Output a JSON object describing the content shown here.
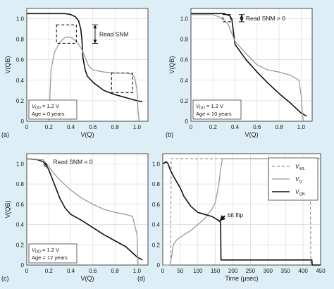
{
  "figure": {
    "background": "#ddeef6",
    "plot_background": "#ffffff",
    "black_curve": "#111111",
    "gray_curve": "#9a9a9a"
  },
  "chart_data": [
    {
      "id": "a",
      "type": "line",
      "panel_label": "(a)",
      "xlabel": "V(Q)",
      "ylabel": "V(QB)",
      "xlim": [
        0,
        1.1
      ],
      "ylim": [
        0,
        1.1
      ],
      "xticks": [
        "0",
        "0.2",
        "0.4",
        "0.6",
        "0.8",
        "1.0"
      ],
      "yticks": [
        "0",
        "0.2",
        "0.4",
        "0.6",
        "0.8",
        "1.0"
      ],
      "grid": true,
      "series": [
        {
          "color": "#111111",
          "x": [
            0.0,
            0.35,
            0.4,
            0.44,
            0.47,
            0.49,
            0.5,
            0.51,
            0.53,
            0.55,
            0.6,
            0.7,
            0.8,
            0.9,
            1.0,
            1.05
          ],
          "y": [
            1.05,
            1.05,
            1.04,
            1.02,
            0.98,
            0.9,
            0.8,
            0.62,
            0.5,
            0.44,
            0.38,
            0.3,
            0.26,
            0.23,
            0.2,
            0.19
          ]
        },
        {
          "color": "#9a9a9a",
          "x": [
            0.2,
            0.22,
            0.25,
            0.3,
            0.35,
            0.4,
            0.45,
            0.5,
            0.54,
            0.56,
            0.6,
            0.7,
            0.8,
            0.9,
            0.95,
            0.98,
            1.0,
            1.01,
            1.02
          ],
          "y": [
            0.0,
            0.5,
            0.67,
            0.77,
            0.82,
            0.82,
            0.78,
            0.7,
            0.6,
            0.54,
            0.5,
            0.48,
            0.47,
            0.47,
            0.46,
            0.43,
            0.3,
            0.1,
            0.0
          ]
        }
      ],
      "snm_boxes": [
        {
          "x": [
            0.27,
            0.45
          ],
          "y": [
            0.76,
            0.94
          ]
        },
        {
          "x": [
            0.77,
            0.96
          ],
          "y": [
            0.28,
            0.47
          ]
        }
      ],
      "annotation": {
        "text": "Read SNM",
        "x": 0.62,
        "y": [
          0.76,
          0.94
        ]
      },
      "legend": {
        "position": "bottom-left",
        "lines": [
          "V DD = 1.2 V",
          "Age = 0 years"
        ]
      }
    },
    {
      "id": "b",
      "type": "line",
      "panel_label": "(b)",
      "xlabel": "V(Q)",
      "ylabel": "V(QB)",
      "xlim": [
        0,
        1.1
      ],
      "ylim": [
        0,
        1.1
      ],
      "xticks": [
        "0",
        "0.2",
        "0.4",
        "0.6",
        "0.8",
        "1.0"
      ],
      "yticks": [
        "0",
        "0.2",
        "0.4",
        "0.6",
        "0.8",
        "1.0"
      ],
      "grid": true,
      "series": [
        {
          "color": "#111111",
          "x": [
            0.0,
            0.3,
            0.35,
            0.37,
            0.4,
            0.5,
            0.6,
            0.7,
            0.8,
            0.9,
            1.0,
            1.05
          ],
          "y": [
            1.05,
            1.05,
            1.03,
            1.0,
            0.75,
            0.6,
            0.48,
            0.37,
            0.27,
            0.18,
            0.08,
            0.05
          ]
        },
        {
          "color": "#9a9a9a",
          "x": [
            0.0,
            0.2,
            0.25,
            0.3,
            0.34,
            0.4,
            0.5,
            0.6,
            0.7,
            0.8,
            0.9,
            0.98,
            1.0,
            1.01,
            1.02
          ],
          "y": [
            1.04,
            1.04,
            1.02,
            0.99,
            0.94,
            0.78,
            0.66,
            0.55,
            0.5,
            0.48,
            0.45,
            0.4,
            0.25,
            0.1,
            0.0
          ]
        }
      ],
      "snm_boxes": [
        {
          "x": [
            0.29,
            0.36
          ],
          "y": [
            0.97,
            1.04
          ]
        }
      ],
      "annotation": {
        "text": "Read SNM > 0",
        "x": 0.46,
        "y": [
          0.97,
          1.04
        ]
      },
      "legend": {
        "position": "bottom-left",
        "lines": [
          "V DD = 1.2 V",
          "Age = 10 years"
        ]
      }
    },
    {
      "id": "c",
      "type": "line",
      "panel_label": "(c)",
      "xlabel": "V(Q)",
      "ylabel": "V(QB)",
      "xlim": [
        0,
        1.1
      ],
      "ylim": [
        0,
        1.1
      ],
      "xticks": [
        "0",
        "0.2",
        "0.4",
        "0.6",
        "0.8",
        "1.0"
      ],
      "yticks": [
        "0",
        "0.2",
        "0.4",
        "0.6",
        "0.8",
        "1.0"
      ],
      "grid": true,
      "series": [
        {
          "color": "#111111",
          "x": [
            0.0,
            0.1,
            0.15,
            0.18,
            0.2,
            0.25,
            0.3,
            0.35,
            0.4,
            0.5,
            0.6,
            0.7,
            0.8,
            0.9,
            1.0,
            1.05
          ],
          "y": [
            1.05,
            1.04,
            1.02,
            0.98,
            0.94,
            0.8,
            0.66,
            0.56,
            0.5,
            0.44,
            0.37,
            0.3,
            0.24,
            0.18,
            0.08,
            0.05
          ]
        },
        {
          "color": "#9a9a9a",
          "x": [
            0.0,
            0.15,
            0.18,
            0.25,
            0.3,
            0.4,
            0.5,
            0.6,
            0.7,
            0.8,
            0.9,
            0.96,
            1.0,
            1.01
          ],
          "y": [
            1.05,
            1.04,
            1.0,
            0.9,
            0.84,
            0.74,
            0.66,
            0.6,
            0.55,
            0.52,
            0.5,
            0.48,
            0.3,
            0.0
          ]
        }
      ],
      "snm_point": {
        "x": 0.17,
        "y": 0.99
      },
      "annotation": {
        "text": "Read SNM = 0",
        "x": 0.24,
        "y": 1.02
      },
      "legend": {
        "position": "bottom-left",
        "lines": [
          "V DD = 1.2 V",
          "Age = 12 years"
        ]
      }
    },
    {
      "id": "d",
      "type": "line",
      "panel_label": "(d)",
      "xlabel": "Time (μsec)",
      "xlim": [
        0,
        450
      ],
      "ylim": [
        0,
        1.1
      ],
      "xticks": [
        "0",
        "50",
        "100",
        "150",
        "200",
        "250",
        "300",
        "350",
        "400",
        "450"
      ],
      "yticks": [
        "0",
        "0.2",
        "0.4",
        "0.6",
        "0.8",
        "1.0"
      ],
      "grid": true,
      "series": [
        {
          "name": "V WL",
          "color": "#9a9a9a",
          "dash": "dashed",
          "x": [
            0,
            22,
            24,
            420,
            422,
            450
          ],
          "y": [
            0,
            0,
            1.05,
            1.05,
            0,
            0
          ]
        },
        {
          "name": "V Q",
          "color": "#9a9a9a",
          "dash": "solid",
          "x": [
            0,
            20,
            25,
            30,
            40,
            60,
            80,
            100,
            120,
            140,
            150,
            160,
            165,
            170,
            450
          ],
          "y": [
            0.0,
            0.0,
            0.08,
            0.2,
            0.25,
            0.3,
            0.34,
            0.4,
            0.46,
            0.55,
            0.62,
            0.8,
            0.95,
            1.05,
            1.05
          ]
        },
        {
          "name": "V QB",
          "color": "#111111",
          "dash": "solid",
          "x": [
            0,
            10,
            15,
            20,
            30,
            40,
            50,
            60,
            80,
            100,
            120,
            140,
            150,
            160,
            165,
            166,
            200,
            300,
            400,
            425,
            426,
            450
          ],
          "y": [
            1.0,
            1.02,
            1.0,
            0.95,
            0.88,
            0.82,
            0.76,
            0.68,
            0.58,
            0.52,
            0.5,
            0.48,
            0.46,
            0.44,
            0.42,
            0.05,
            0.05,
            0.05,
            0.05,
            0.05,
            0.0,
            0.0
          ]
        }
      ],
      "annotation": {
        "text": "bit flip",
        "x": 205,
        "y": 0.5,
        "arrow_to": {
          "x": 150,
          "y": 0.42
        }
      },
      "legend": {
        "position": "top-right",
        "entries": [
          {
            "base": "V",
            "sub": "WL",
            "series": 0
          },
          {
            "base": "V",
            "sub": "Q",
            "series": 1
          },
          {
            "base": "V",
            "sub": "QB",
            "series": 2
          }
        ]
      }
    }
  ]
}
